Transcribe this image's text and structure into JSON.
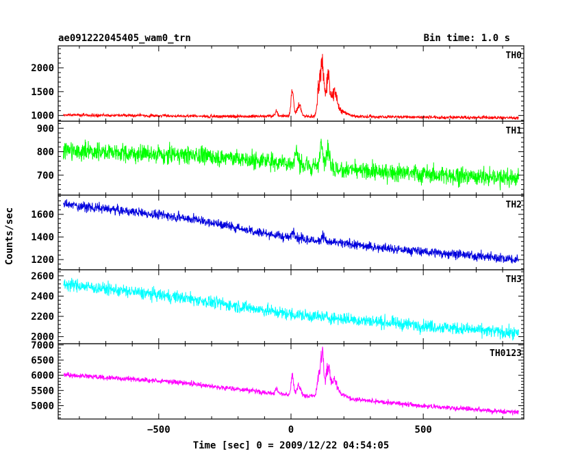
{
  "chart_data": {
    "type": "line",
    "title_left": "ae091222045405_wam0_trn",
    "title_right": "Bin time: 1.0 s",
    "xlabel": "Time [sec] 0 = 2009/12/22 04:54:05",
    "ylabel": "Counts/sec",
    "xlim": [
      -880,
      880
    ],
    "x_ticks": [
      -500,
      0,
      500
    ],
    "x_tick_labels": [
      "−500",
      "0",
      "500"
    ],
    "grid": false,
    "panels": [
      {
        "name": "TH0",
        "color": "#ff0000",
        "ylim": [
          880,
          2460
        ],
        "y_ticks": [
          1000,
          1500,
          2000
        ],
        "y_tick_labels": [
          "1000",
          "1500",
          "2000"
        ],
        "noise": 45,
        "trend": [
          [
            -860,
            1010
          ],
          [
            -200,
            980
          ],
          [
            -60,
            990
          ],
          [
            200,
            980
          ],
          [
            860,
            950
          ]
        ],
        "features": [
          {
            "x": -55,
            "height": 130,
            "width": 6
          },
          {
            "x": 5,
            "height": 550,
            "width": 7
          },
          {
            "x": 30,
            "height": 300,
            "width": 10
          },
          {
            "x": 105,
            "height": 700,
            "width": 8
          },
          {
            "x": 118,
            "height": 1300,
            "width": 8
          },
          {
            "x": 140,
            "height": 900,
            "width": 12
          },
          {
            "x": 165,
            "height": 500,
            "width": 14
          },
          {
            "x": 190,
            "height": 120,
            "width": 30
          }
        ]
      },
      {
        "name": "TH1",
        "color": "#00ff00",
        "ylim": [
          615,
          930
        ],
        "y_ticks": [
          700,
          800,
          900
        ],
        "y_tick_labels": [
          "700",
          "800",
          "900"
        ],
        "noise": 50,
        "trend": [
          [
            -860,
            805
          ],
          [
            -300,
            780
          ],
          [
            0,
            750
          ],
          [
            200,
            720
          ],
          [
            860,
            685
          ]
        ],
        "features": [
          {
            "x": 20,
            "height": 60,
            "width": 8
          },
          {
            "x": 115,
            "height": 150,
            "width": 7
          },
          {
            "x": 140,
            "height": 90,
            "width": 12
          }
        ]
      },
      {
        "name": "TH2",
        "color": "#0000dd",
        "ylim": [
          1110,
          1770
        ],
        "y_ticks": [
          1200,
          1400,
          1600
        ],
        "y_tick_labels": [
          "1200",
          "1400",
          "1600"
        ],
        "noise": 55,
        "trend": [
          [
            -860,
            1690
          ],
          [
            -400,
            1570
          ],
          [
            0,
            1390
          ],
          [
            400,
            1290
          ],
          [
            860,
            1200
          ]
        ],
        "features": [
          {
            "x": 10,
            "height": 70,
            "width": 10
          },
          {
            "x": 120,
            "height": 60,
            "width": 10
          }
        ]
      },
      {
        "name": "TH3",
        "color": "#00ffff",
        "ylim": [
          1930,
          2660
        ],
        "y_ticks": [
          2000,
          2200,
          2400,
          2600
        ],
        "y_tick_labels": [
          "2000",
          "2200",
          "2400",
          "2600"
        ],
        "noise": 80,
        "trend": [
          [
            -860,
            2520
          ],
          [
            -400,
            2380
          ],
          [
            0,
            2220
          ],
          [
            400,
            2130
          ],
          [
            860,
            2030
          ]
        ],
        "features": []
      },
      {
        "name": "TH0123",
        "color": "#ff00ff",
        "ylim": [
          4560,
          7040
        ],
        "y_ticks": [
          5000,
          5500,
          6000,
          6500,
          7000
        ],
        "y_tick_labels": [
          "5000",
          "5500",
          "6000",
          "6500",
          "7000"
        ],
        "noise": 110,
        "trend": [
          [
            -860,
            6020
          ],
          [
            -400,
            5750
          ],
          [
            -60,
            5400
          ],
          [
            250,
            5200
          ],
          [
            500,
            4990
          ],
          [
            860,
            4780
          ]
        ],
        "features": [
          {
            "x": -55,
            "height": 200,
            "width": 6
          },
          {
            "x": 5,
            "height": 700,
            "width": 7
          },
          {
            "x": 30,
            "height": 350,
            "width": 10
          },
          {
            "x": 105,
            "height": 800,
            "width": 8
          },
          {
            "x": 118,
            "height": 1600,
            "width": 8
          },
          {
            "x": 140,
            "height": 1100,
            "width": 12
          },
          {
            "x": 165,
            "height": 600,
            "width": 14
          },
          {
            "x": 190,
            "height": 150,
            "width": 30
          }
        ]
      }
    ]
  }
}
